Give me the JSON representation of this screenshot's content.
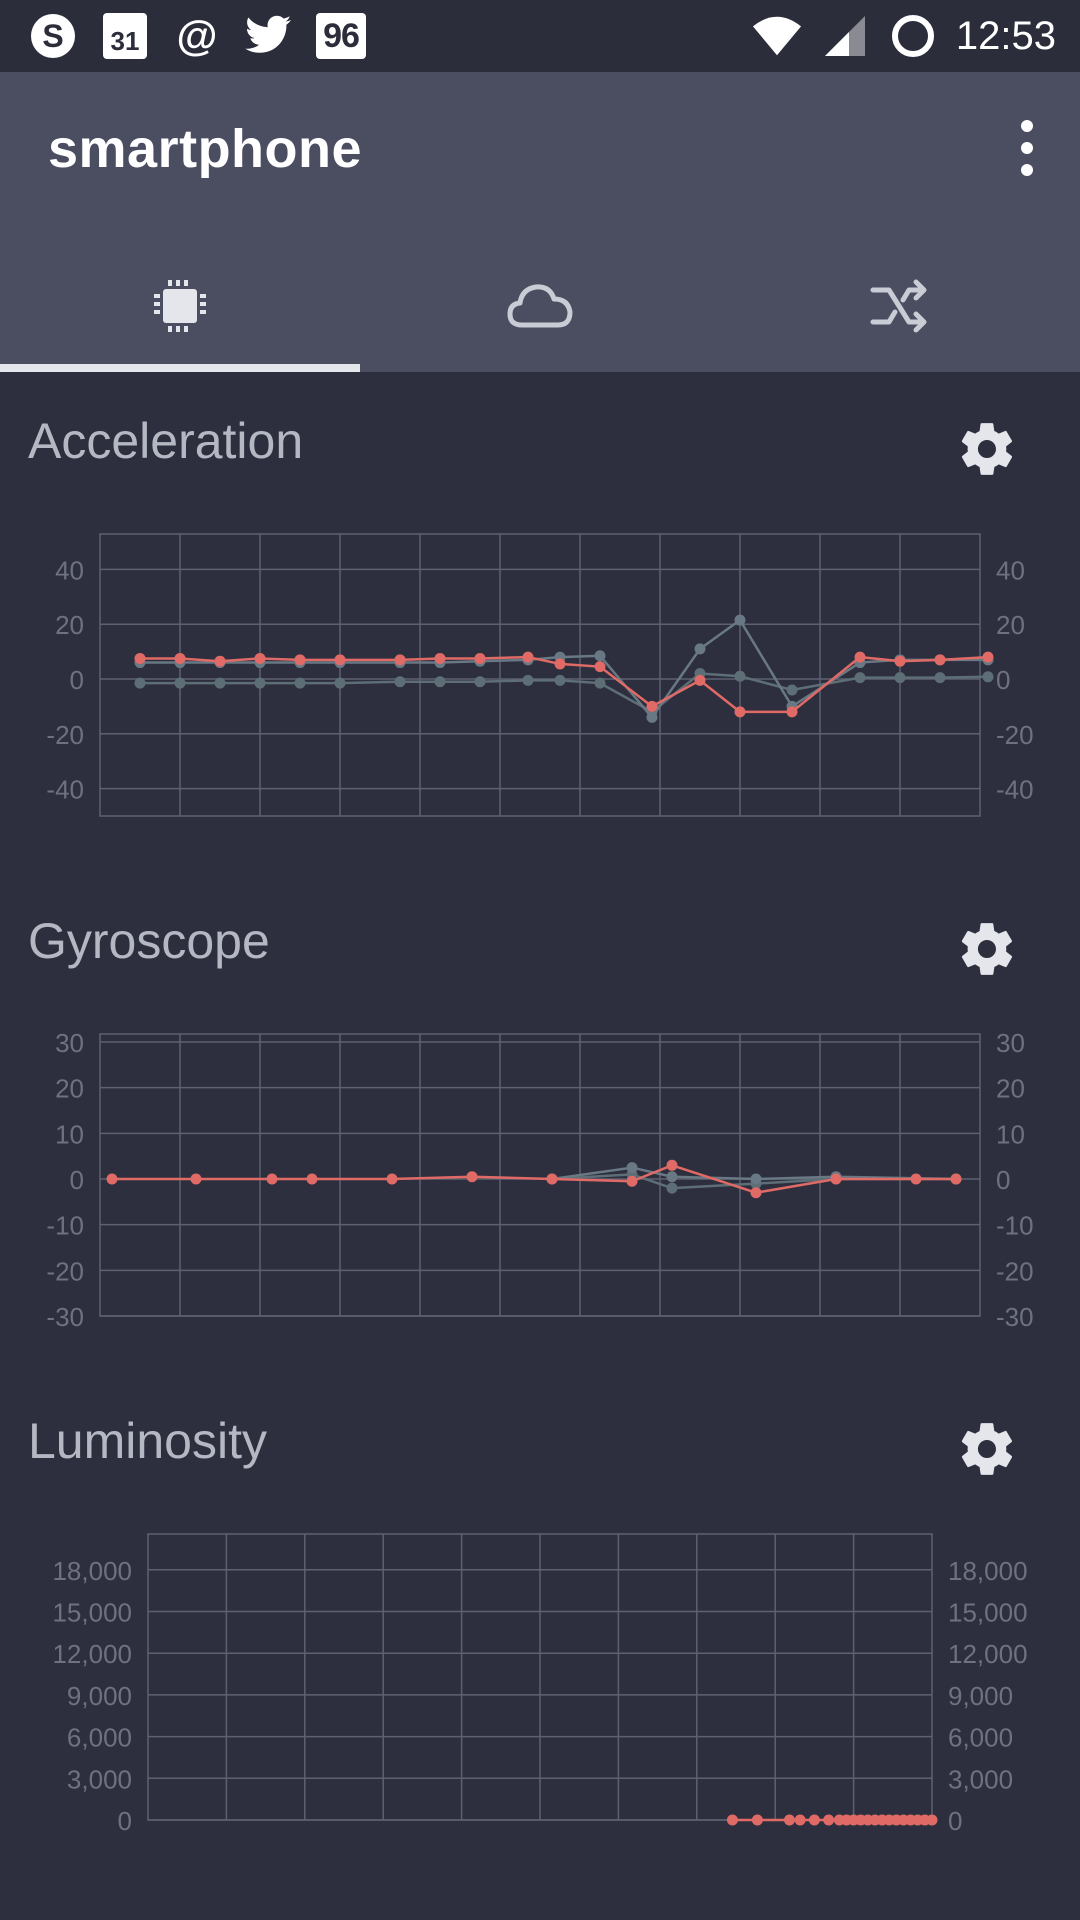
{
  "status_bar": {
    "time": "12:53",
    "calendar_day": "31",
    "badge_number": "96",
    "icons": [
      "skype-icon",
      "calendar-icon",
      "at-icon",
      "twitter-icon",
      "badge-icon",
      "wifi-icon",
      "signal-icon",
      "sync-icon"
    ]
  },
  "app_bar": {
    "title": "smartphone",
    "menu_icon": "more-vert-icon"
  },
  "tabs": [
    {
      "icon": "chip-icon",
      "selected": true
    },
    {
      "icon": "cloud-icon",
      "selected": false
    },
    {
      "icon": "shuffle-icon",
      "selected": false
    }
  ],
  "colors": {
    "background": "#2d2f3e",
    "app_bar": "#4b4e61",
    "accent_series": "#e06a66",
    "gray_series": "#687884",
    "grid": "#5d6170"
  },
  "sections": [
    {
      "title": "Acceleration",
      "settings_icon": "gear-icon"
    },
    {
      "title": "Gyroscope",
      "settings_icon": "gear-icon"
    },
    {
      "title": "Luminosity",
      "settings_icon": "gear-icon"
    }
  ],
  "chart_data": [
    {
      "type": "line",
      "title": "Acceleration",
      "ylim": [
        -50,
        50
      ],
      "y_ticks": [
        40,
        20,
        0,
        -20,
        -40
      ],
      "y_tick_labels": [
        "40",
        "20",
        "0",
        "-20",
        "-40"
      ],
      "grid": true,
      "xlim": [
        0,
        22
      ],
      "series": [
        {
          "color": "#e06a66",
          "points": [
            [
              1,
              7.5
            ],
            [
              2,
              7.5
            ],
            [
              3,
              6.5
            ],
            [
              4,
              7.5
            ],
            [
              5,
              7
            ],
            [
              6,
              7
            ],
            [
              7.5,
              7
            ],
            [
              8.5,
              7.5
            ],
            [
              9.5,
              7.5
            ],
            [
              10.7,
              8
            ],
            [
              11.5,
              5.5
            ],
            [
              12.5,
              4.5
            ],
            [
              13.8,
              -10
            ],
            [
              15,
              -0.5
            ],
            [
              16,
              -12
            ],
            [
              17.3,
              -12
            ],
            [
              19,
              8
            ],
            [
              20,
              6.5
            ],
            [
              21,
              7
            ],
            [
              22.2,
              8
            ]
          ]
        },
        {
          "color": "#687884",
          "points": [
            [
              1,
              6
            ],
            [
              2,
              6
            ],
            [
              3,
              6
            ],
            [
              4,
              6
            ],
            [
              5,
              6
            ],
            [
              6,
              6
            ],
            [
              7.5,
              6
            ],
            [
              8.5,
              6
            ],
            [
              9.5,
              6.5
            ],
            [
              10.7,
              7
            ],
            [
              11.5,
              8
            ],
            [
              12.5,
              8.5
            ],
            [
              13.8,
              -14
            ],
            [
              15,
              11
            ],
            [
              16,
              21.5
            ],
            [
              17.3,
              -10
            ],
            [
              19,
              6
            ],
            [
              20,
              7
            ],
            [
              21,
              7
            ],
            [
              22.2,
              7
            ]
          ]
        },
        {
          "color": "#5d6e77",
          "points": [
            [
              1,
              -1.5
            ],
            [
              2,
              -1.5
            ],
            [
              3,
              -1.5
            ],
            [
              4,
              -1.5
            ],
            [
              5,
              -1.5
            ],
            [
              6,
              -1.5
            ],
            [
              7.5,
              -1
            ],
            [
              8.5,
              -1
            ],
            [
              9.5,
              -1
            ],
            [
              10.7,
              -0.5
            ],
            [
              11.5,
              -0.5
            ],
            [
              12.5,
              -1.5
            ],
            [
              13.8,
              -12
            ],
            [
              15,
              2
            ],
            [
              16,
              1
            ],
            [
              17.3,
              -4
            ],
            [
              19,
              0.5
            ],
            [
              20,
              0.5
            ],
            [
              21,
              0.5
            ],
            [
              22.2,
              0.8
            ]
          ]
        }
      ]
    },
    {
      "type": "line",
      "title": "Gyroscope",
      "ylim": [
        -30,
        30
      ],
      "y_ticks": [
        30,
        20,
        10,
        0,
        -10,
        -20,
        -30
      ],
      "y_tick_labels": [
        "30",
        "20",
        "10",
        "0",
        "-10",
        "-20",
        "-30"
      ],
      "grid": true,
      "xlim": [
        0,
        22
      ],
      "series": [
        {
          "color": "#e06a66",
          "points": [
            [
              0.3,
              0
            ],
            [
              2.4,
              0
            ],
            [
              4.3,
              0
            ],
            [
              5.3,
              0
            ],
            [
              7.3,
              0
            ],
            [
              9.3,
              0.5
            ],
            [
              11.3,
              0
            ],
            [
              13.3,
              -0.5
            ],
            [
              14.3,
              3
            ],
            [
              16.4,
              -3
            ],
            [
              18.4,
              0
            ],
            [
              20.4,
              0
            ],
            [
              21.4,
              0
            ]
          ]
        },
        {
          "color": "#687884",
          "points": [
            [
              11.3,
              0
            ],
            [
              13.3,
              2.5
            ],
            [
              14.3,
              0.5
            ],
            [
              16.4,
              0
            ],
            [
              18.4,
              0.5
            ],
            [
              21.4,
              0
            ]
          ]
        },
        {
          "color": "#5d6e77",
          "points": [
            [
              11.3,
              0
            ],
            [
              13.3,
              1
            ],
            [
              14.3,
              -2
            ],
            [
              16.4,
              -1
            ],
            [
              18.4,
              0
            ],
            [
              21.4,
              0
            ]
          ]
        }
      ]
    },
    {
      "type": "line",
      "title": "Luminosity",
      "ylim": [
        0,
        20000
      ],
      "y_ticks": [
        18000,
        15000,
        12000,
        9000,
        6000,
        3000,
        0
      ],
      "y_tick_labels": [
        "18,000",
        "15,000",
        "12,000",
        "9,000",
        "6,000",
        "3,000",
        "0"
      ],
      "grid": true,
      "xlim": [
        0,
        22
      ],
      "series": [
        {
          "color": "#e06a66",
          "points": [
            [
              16.4,
              0
            ],
            [
              17.1,
              0
            ],
            [
              18,
              0
            ],
            [
              18.3,
              0
            ],
            [
              18.7,
              0
            ],
            [
              19.1,
              0
            ],
            [
              19.4,
              0
            ],
            [
              19.6,
              0
            ],
            [
              19.8,
              0
            ],
            [
              20,
              0
            ],
            [
              20.2,
              0
            ],
            [
              20.4,
              0
            ],
            [
              20.6,
              0
            ],
            [
              20.8,
              0
            ],
            [
              21,
              0
            ],
            [
              21.2,
              0
            ],
            [
              21.4,
              0
            ],
            [
              21.6,
              0
            ],
            [
              21.8,
              0
            ],
            [
              22,
              0
            ]
          ]
        }
      ]
    }
  ]
}
